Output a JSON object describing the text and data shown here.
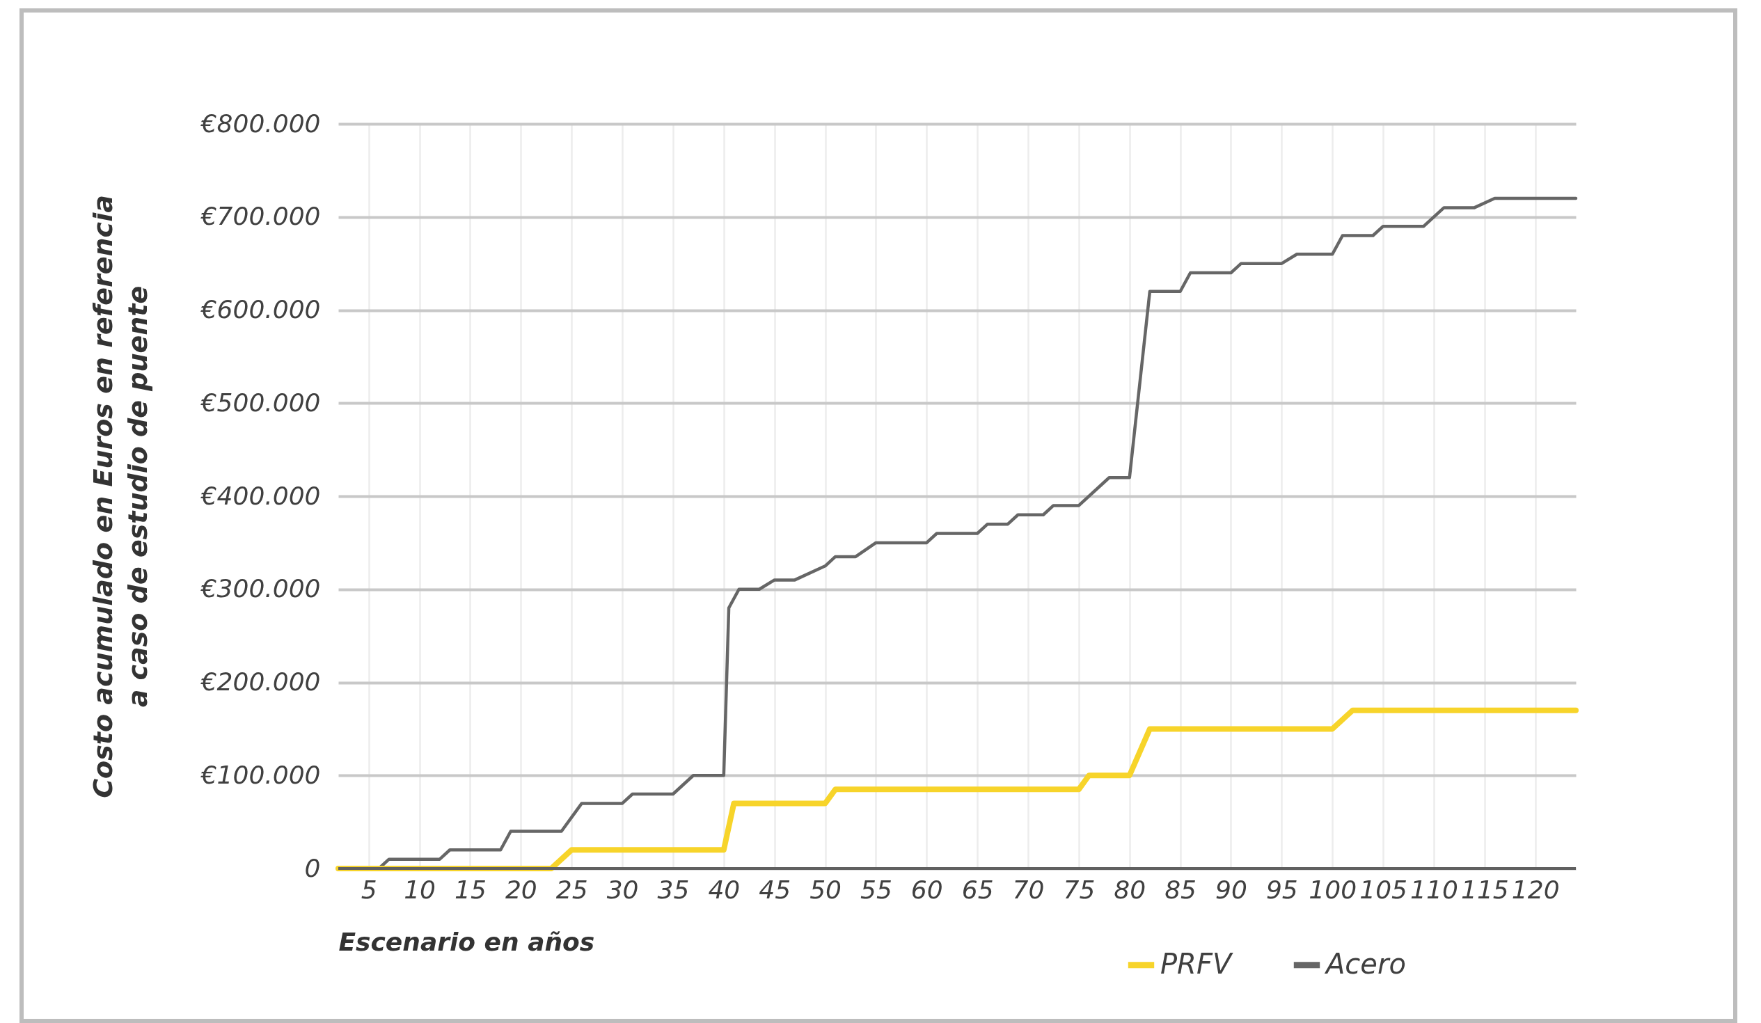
{
  "chart_data": {
    "type": "line",
    "xlabel": "Escenario en años",
    "ylabel": "Costo acumulado en Euros en referencia\na caso de estudio de puente",
    "xlim": [
      2,
      124
    ],
    "xticks": [
      5,
      10,
      15,
      20,
      25,
      30,
      35,
      40,
      45,
      50,
      55,
      60,
      65,
      70,
      75,
      80,
      85,
      90,
      95,
      100,
      105,
      110,
      115,
      120
    ],
    "ylim": [
      0,
      800000
    ],
    "yticks": [
      {
        "value": 0,
        "label": "0"
      },
      {
        "value": 100000,
        "label": "€100.000"
      },
      {
        "value": 200000,
        "label": "€200.000"
      },
      {
        "value": 300000,
        "label": "€300.000"
      },
      {
        "value": 400000,
        "label": "€400.000"
      },
      {
        "value": 500000,
        "label": "€500.000"
      },
      {
        "value": 600000,
        "label": "€600.000"
      },
      {
        "value": 700000,
        "label": "€700.000"
      },
      {
        "value": 800000,
        "label": "€800.000"
      }
    ],
    "grid": true,
    "legend": "bottom right",
    "line_style": "solid",
    "marker": "none",
    "series": [
      {
        "name": "PRFV",
        "color": "#f7d42a",
        "x": [
          2,
          23,
          25,
          40,
          41,
          50,
          51,
          75,
          76,
          80,
          82,
          100,
          102,
          124
        ],
        "values": [
          0,
          0,
          20000,
          20000,
          70000,
          70000,
          85000,
          85000,
          100000,
          100000,
          150000,
          150000,
          170000,
          170000
        ]
      },
      {
        "name": "Acero",
        "color": "#666666",
        "x": [
          2,
          6,
          7,
          12,
          13,
          18,
          19,
          24,
          26,
          30,
          31,
          35,
          37,
          40,
          40.5,
          41.5,
          43.5,
          45,
          47,
          50,
          51,
          53,
          55,
          60,
          61,
          65,
          66,
          68,
          69,
          71.5,
          72.5,
          75,
          78,
          80,
          82,
          85,
          86,
          90,
          91,
          95,
          96.5,
          100,
          101,
          104,
          105,
          109,
          111,
          114,
          116,
          124
        ],
        "values": [
          0,
          0,
          10000,
          10000,
          20000,
          20000,
          40000,
          40000,
          70000,
          70000,
          80000,
          80000,
          100000,
          100000,
          280000,
          300000,
          300000,
          310000,
          310000,
          325000,
          335000,
          335000,
          350000,
          350000,
          360000,
          360000,
          370000,
          370000,
          380000,
          380000,
          390000,
          390000,
          420000,
          420000,
          620000,
          620000,
          640000,
          640000,
          650000,
          650000,
          660000,
          660000,
          680000,
          680000,
          690000,
          690000,
          710000,
          710000,
          720000,
          720000
        ]
      }
    ]
  }
}
